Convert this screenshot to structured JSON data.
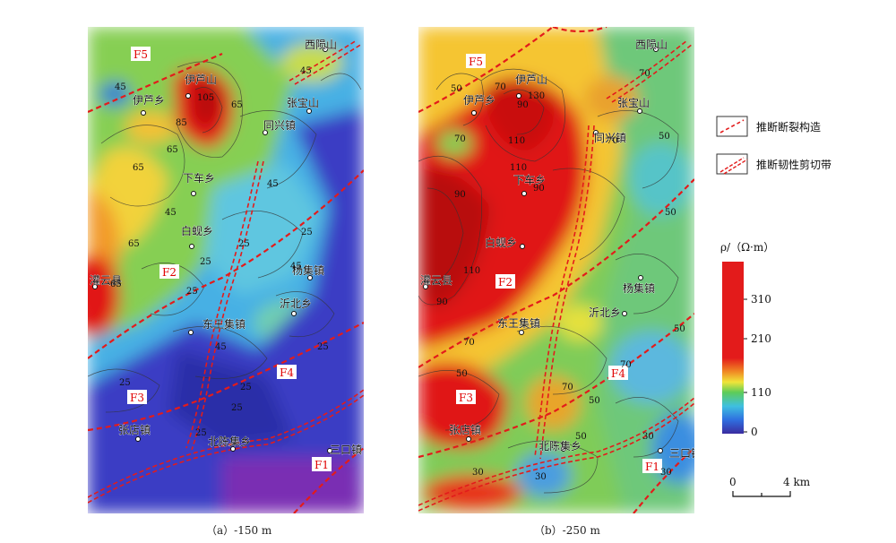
{
  "panels": [
    {
      "caption": "（a）-150 m",
      "places": [
        "西陨山",
        "张宝山",
        "伊芦山",
        "伊芦乡",
        "同兴镇",
        "下车乡",
        "白蚬乡",
        "灌云县",
        "杨集镇",
        "沂北乡",
        "东王集镇",
        "张店镇",
        "北陈集乡",
        "三口镇"
      ],
      "faults": [
        "F1",
        "F2",
        "F3",
        "F4",
        "F5"
      ],
      "contour_values": [
        "45",
        "45",
        "65",
        "85",
        "105",
        "65",
        "65",
        "45",
        "45",
        "25",
        "45",
        "25",
        "65",
        "65",
        "25",
        "25",
        "45",
        "25",
        "25",
        "25",
        "25",
        "25"
      ]
    },
    {
      "caption": "（b）-250 m",
      "places": [
        "西陨山",
        "张宝山",
        "伊芦山",
        "伊芦乡",
        "同兴镇",
        "下车乡",
        "白蚬乡",
        "灌云县",
        "杨集镇",
        "沂北乡",
        "东王集镇",
        "张店镇",
        "北陈集乡",
        "三口镇"
      ],
      "faults": [
        "F1",
        "F2",
        "F3",
        "F4",
        "F5"
      ],
      "contour_values": [
        "50",
        "70",
        "90",
        "110",
        "130",
        "70",
        "70",
        "50",
        "90",
        "110",
        "90",
        "110",
        "90",
        "70",
        "50",
        "50",
        "70",
        "70",
        "50",
        "30",
        "30",
        "50",
        "70",
        "30",
        "50",
        "30"
      ]
    }
  ],
  "legend": {
    "fault_label": "推断断裂构造",
    "shear_label": "推断韧性剪切带",
    "colorbar_title": "ρ/（Ω·m）",
    "ticks": [
      "310",
      "210",
      "110",
      "0"
    ],
    "scale_start": "0",
    "scale_end": "4 km"
  },
  "colors": {
    "fault": "#e31b1b",
    "high": "#e60000",
    "low": "#2c2ec2"
  }
}
